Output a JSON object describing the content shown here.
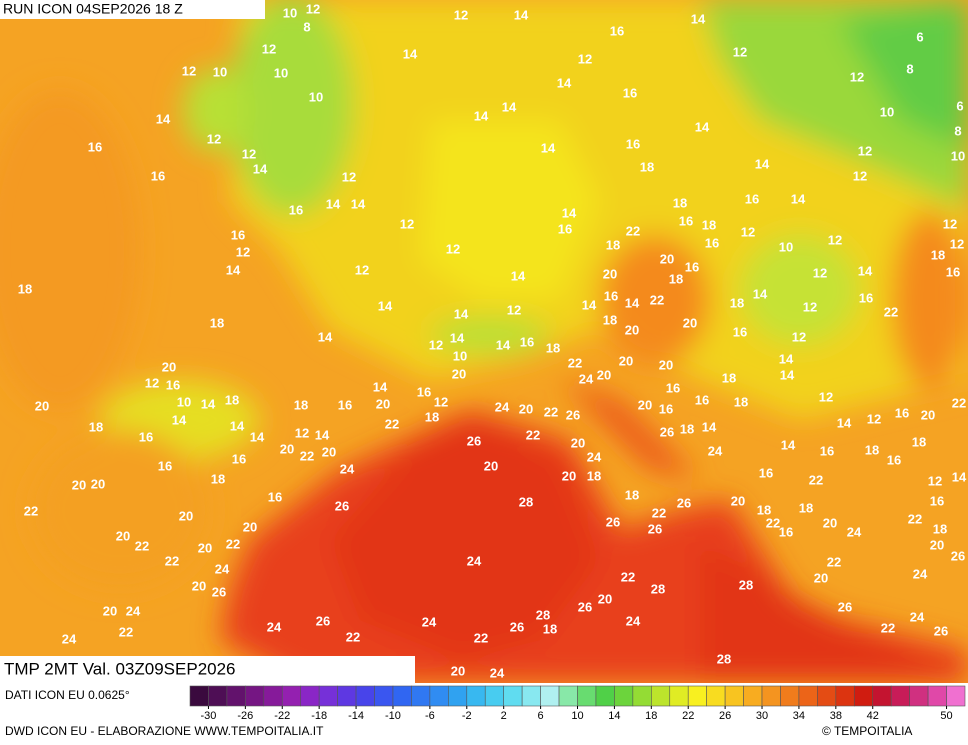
{
  "header": {
    "run": "RUN ICON 04SEP2026 18 Z"
  },
  "map": {
    "labels": [
      10,
      12,
      8,
      12,
      14,
      14,
      16,
      12,
      14,
      12,
      12,
      6,
      12,
      10,
      10,
      8,
      12,
      10,
      14,
      16,
      6,
      14,
      14,
      14,
      10,
      8,
      16,
      12,
      12,
      14,
      16,
      14,
      10,
      14,
      16,
      12,
      18,
      14,
      12,
      12,
      16,
      14,
      14,
      14,
      16,
      18,
      16,
      14,
      12,
      22,
      16,
      18,
      18,
      12,
      12,
      16,
      12,
      12,
      16,
      10,
      12,
      18,
      12,
      20,
      14,
      12,
      14,
      20,
      16,
      18,
      16,
      18,
      12,
      14,
      16,
      22,
      14,
      18,
      14,
      16,
      14,
      12,
      14,
      12,
      22,
      18,
      14,
      18,
      20,
      16,
      14,
      14,
      20,
      12,
      12,
      14,
      16,
      18,
      10,
      14,
      20,
      22,
      20,
      20,
      14,
      12,
      16,
      14,
      16,
      20,
      24,
      20,
      18,
      10,
      14,
      18,
      12,
      20,
      18,
      16,
      20,
      24,
      20,
      22,
      26,
      20,
      16,
      16,
      16,
      18,
      12,
      16,
      20,
      22,
      18,
      14,
      18,
      22,
      14,
      26,
      18,
      14,
      14,
      12,
      16,
      14,
      12,
      14,
      22,
      20,
      26,
      18,
      14,
      20,
      22,
      20,
      24,
      16,
      24,
      16,
      18,
      16,
      16,
      24,
      20,
      18,
      20,
      16,
      12,
      14,
      18,
      22,
      20,
      20,
      16,
      18,
      26,
      28,
      26,
      20,
      18,
      18,
      16,
      22,
      20,
      22,
      22,
      20,
      22,
      18,
      26,
      26,
      20,
      20,
      22,
      22,
      20,
      16,
      24,
      20,
      26,
      22,
      24,
      24,
      22,
      22,
      20,
      24,
      28,
      20,
      28,
      26,
      20,
      26,
      26,
      20,
      24,
      28,
      24,
      24,
      22,
      26,
      24,
      22,
      24,
      26,
      24,
      26,
      22,
      22,
      18,
      28,
      20,
      24
    ],
    "footer": "TMP 2MT Val. 03Z09SEP2026"
  },
  "legend": {
    "source": "DATI ICON EU 0.0625°",
    "credit": "DWD ICON EU - ELABORAZIONE WWW.TEMPOITALIA.IT",
    "logo": "© TEMPOITALIA",
    "range": [
      -32,
      52
    ],
    "ticks": [
      -30,
      -26,
      -22,
      -18,
      -14,
      -10,
      -6,
      -2,
      2,
      6,
      10,
      14,
      18,
      22,
      26,
      30,
      34,
      38,
      42,
      50
    ],
    "colors": [
      "#3a0a3e",
      "#4e0e55",
      "#62126c",
      "#751683",
      "#861a9a",
      "#9420b0",
      "#8a26c6",
      "#7630d8",
      "#5e38e2",
      "#4844ea",
      "#3a56f0",
      "#3066f2",
      "#3078f2",
      "#308cf2",
      "#30a2f0",
      "#38b8f0",
      "#48ccf0",
      "#60dcf0",
      "#88e8f0",
      "#b0f0f0",
      "#88e8a8",
      "#68dc70",
      "#50d048",
      "#6cd43c",
      "#94dc34",
      "#bce42c",
      "#e0ec24",
      "#f8f020",
      "#f8dc20",
      "#f8c420",
      "#f8ac20",
      "#f49420",
      "#f07c1c",
      "#ec6418",
      "#e44c14",
      "#dc3410",
      "#d01c10",
      "#c41430",
      "#c81c58",
      "#d03080",
      "#e048a8",
      "#f070d0"
    ]
  }
}
